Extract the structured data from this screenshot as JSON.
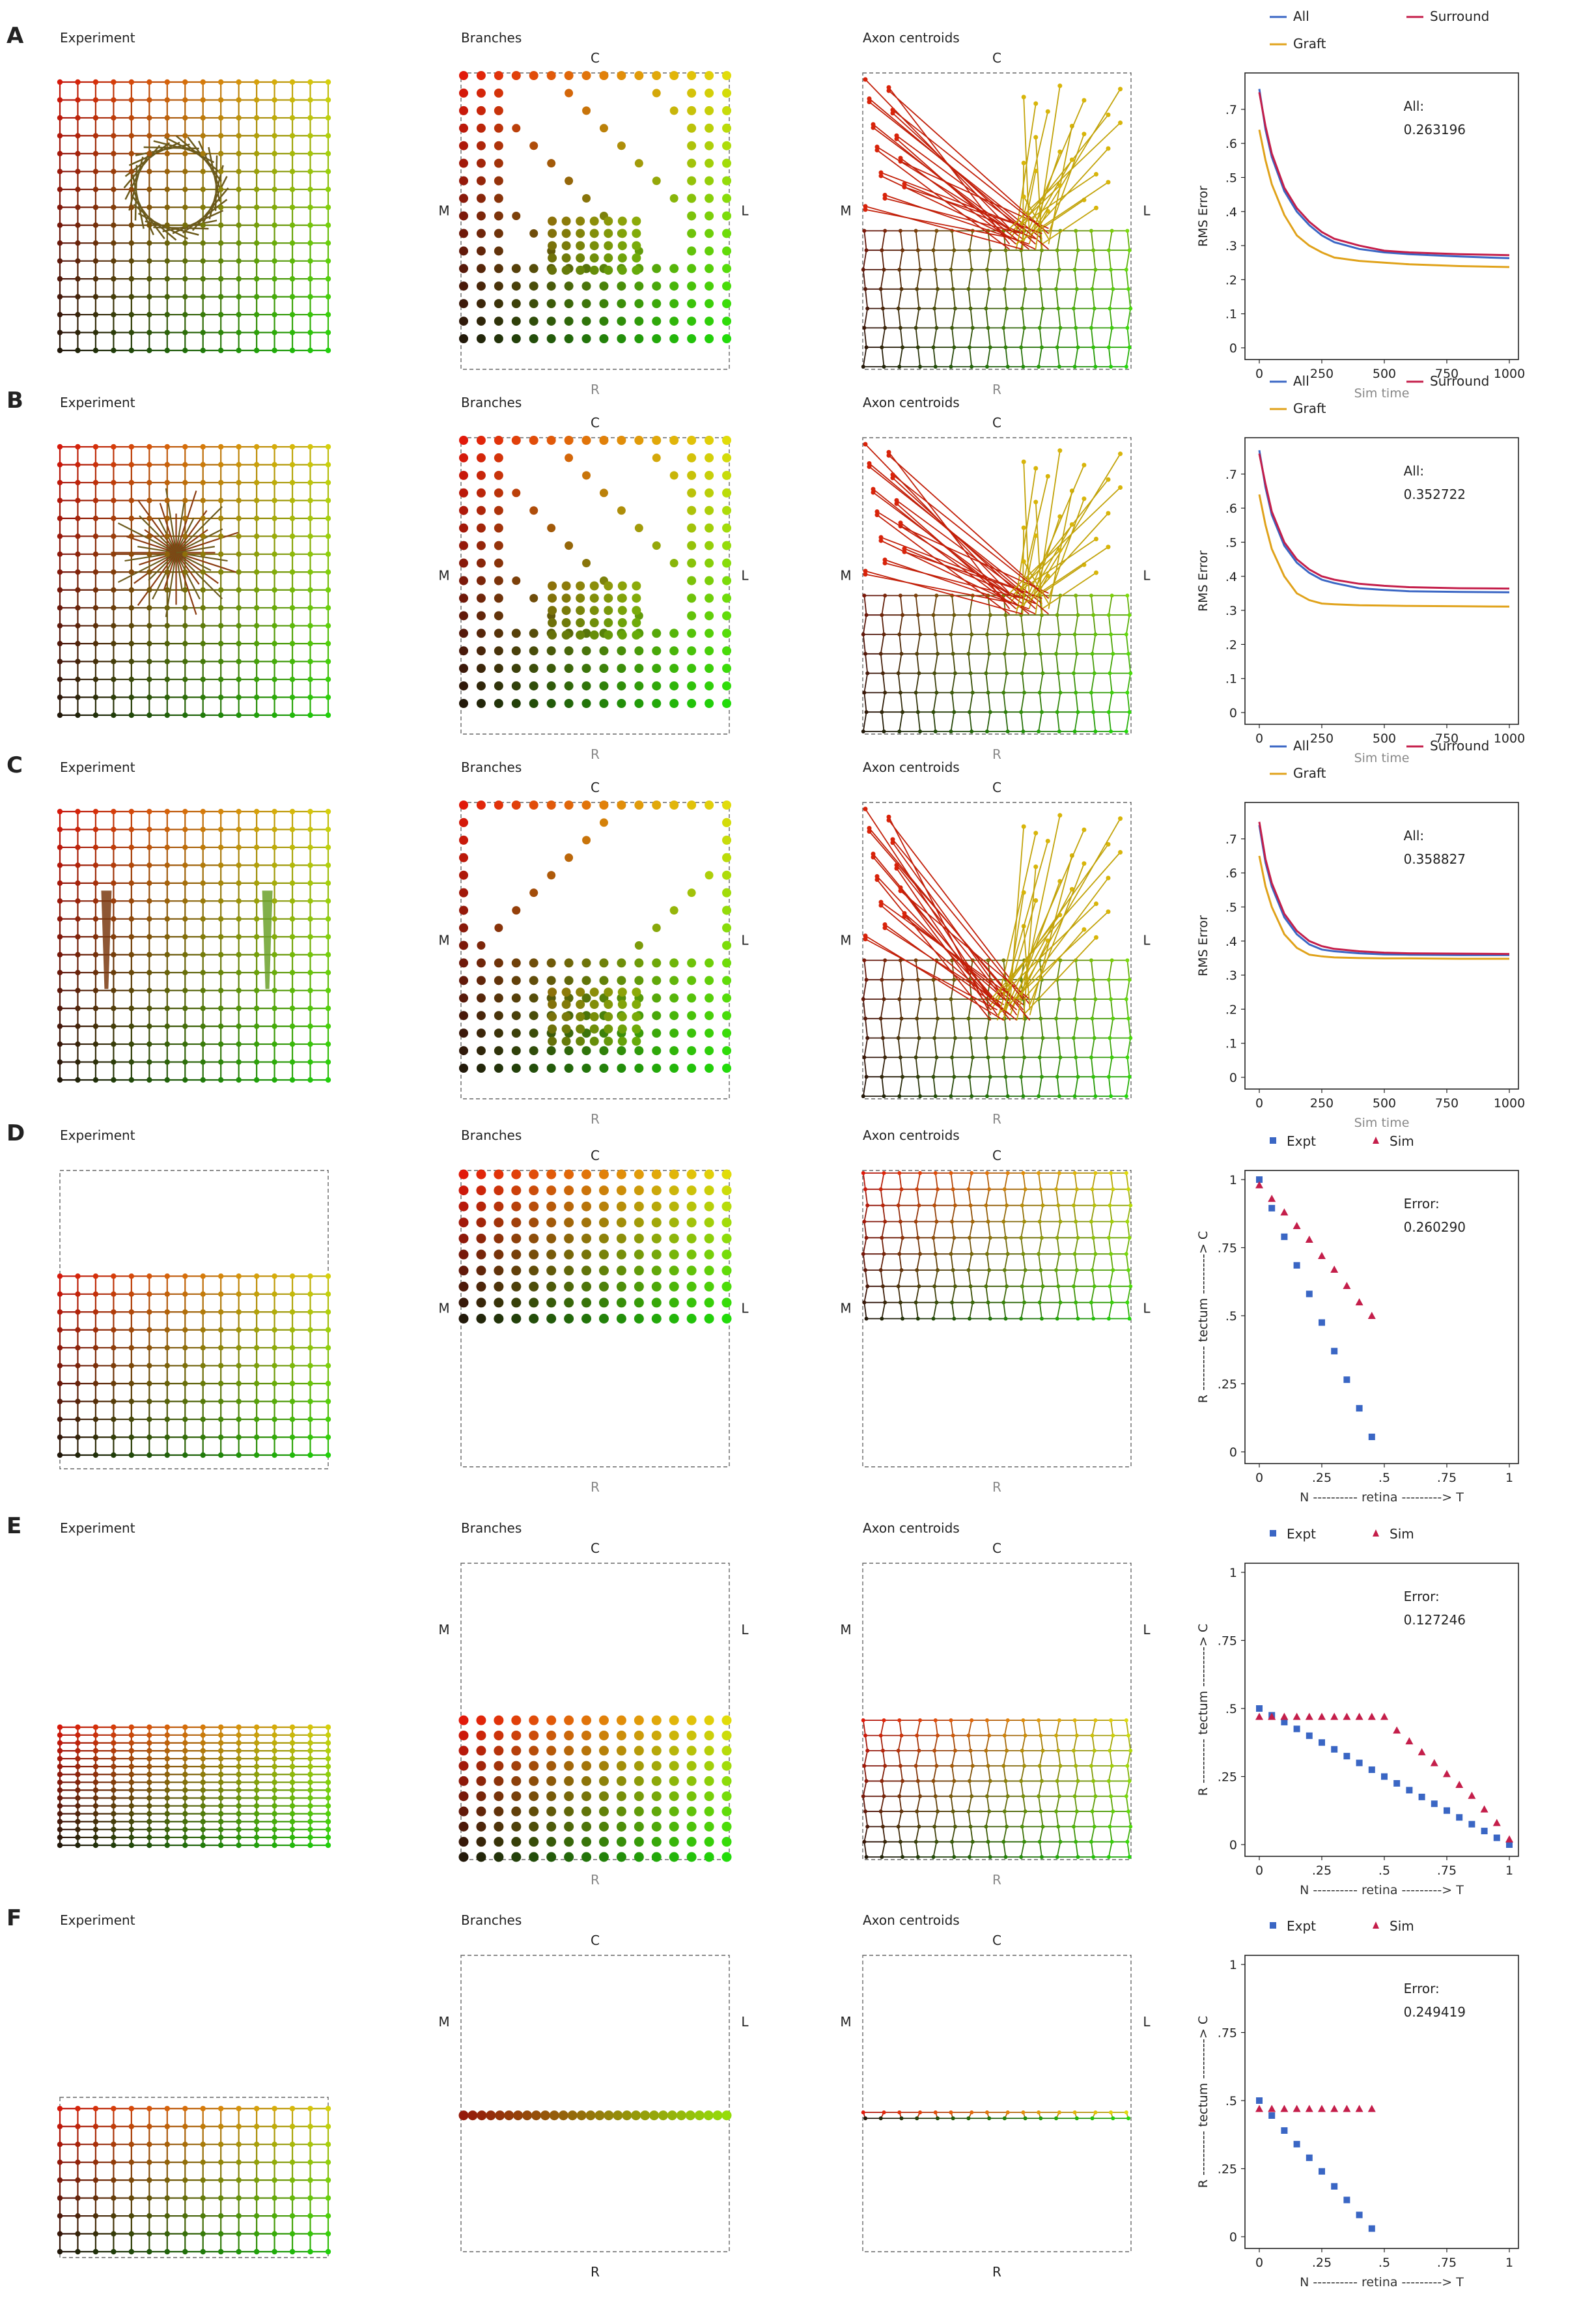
{
  "rows": [
    {
      "letter": "A",
      "titles": {
        "experiment": "Experiment",
        "branches": "Branches",
        "axons": "Axon centroids"
      },
      "axis_labels": {
        "c": "C",
        "m": "M",
        "l": "L",
        "r": "R"
      },
      "legend": [
        "All",
        "Surround",
        "Graft"
      ],
      "annotation": {
        "label": "All:",
        "value": "0.263196"
      },
      "chart_data": {
        "type": "line",
        "xlabel": "Sim time",
        "ylabel": "RMS Error",
        "xlim": [
          0,
          1000
        ],
        "ylim": [
          0,
          0.78
        ],
        "xticks": [
          "0",
          "250",
          "500",
          "750",
          "1000"
        ],
        "yticks": [
          "0",
          ".1",
          ".2",
          ".3",
          ".4",
          ".5",
          ".6",
          ".7"
        ],
        "series": [
          {
            "name": "All",
            "color": "#3a66c4",
            "points": [
              [
                0,
                0.76
              ],
              [
                25,
                0.64
              ],
              [
                50,
                0.56
              ],
              [
                100,
                0.46
              ],
              [
                150,
                0.4
              ],
              [
                200,
                0.36
              ],
              [
                250,
                0.33
              ],
              [
                300,
                0.31
              ],
              [
                400,
                0.29
              ],
              [
                500,
                0.28
              ],
              [
                600,
                0.275
              ],
              [
                800,
                0.268
              ],
              [
                1000,
                0.263
              ]
            ]
          },
          {
            "name": "Surround",
            "color": "#c41e4a",
            "points": [
              [
                0,
                0.75
              ],
              [
                25,
                0.65
              ],
              [
                50,
                0.57
              ],
              [
                100,
                0.47
              ],
              [
                150,
                0.41
              ],
              [
                200,
                0.37
              ],
              [
                250,
                0.34
              ],
              [
                300,
                0.32
              ],
              [
                400,
                0.3
              ],
              [
                500,
                0.285
              ],
              [
                600,
                0.28
              ],
              [
                800,
                0.275
              ],
              [
                1000,
                0.272
              ]
            ]
          },
          {
            "name": "Graft",
            "color": "#e0a21a",
            "points": [
              [
                0,
                0.64
              ],
              [
                25,
                0.55
              ],
              [
                50,
                0.48
              ],
              [
                100,
                0.39
              ],
              [
                150,
                0.33
              ],
              [
                200,
                0.3
              ],
              [
                250,
                0.28
              ],
              [
                300,
                0.265
              ],
              [
                400,
                0.255
              ],
              [
                500,
                0.25
              ],
              [
                600,
                0.245
              ],
              [
                800,
                0.24
              ],
              [
                1000,
                0.237
              ]
            ]
          }
        ]
      }
    },
    {
      "letter": "B",
      "titles": {
        "experiment": "Experiment",
        "branches": "Branches",
        "axons": "Axon centroids"
      },
      "axis_labels": {
        "c": "C",
        "m": "M",
        "l": "L",
        "r": "R"
      },
      "legend": [
        "All",
        "Surround",
        "Graft"
      ],
      "annotation": {
        "label": "All:",
        "value": "0.352722"
      },
      "chart_data": {
        "type": "line",
        "xlabel": "Sim time",
        "ylabel": "RMS Error",
        "xlim": [
          0,
          1000
        ],
        "ylim": [
          0,
          0.78
        ],
        "xticks": [
          "0",
          "250",
          "500",
          "750",
          "1000"
        ],
        "yticks": [
          "0",
          ".1",
          ".2",
          ".3",
          ".4",
          ".5",
          ".6",
          ".7"
        ],
        "series": [
          {
            "name": "All",
            "color": "#3a66c4",
            "points": [
              [
                0,
                0.77
              ],
              [
                25,
                0.66
              ],
              [
                50,
                0.58
              ],
              [
                100,
                0.49
              ],
              [
                150,
                0.44
              ],
              [
                200,
                0.41
              ],
              [
                250,
                0.39
              ],
              [
                300,
                0.38
              ],
              [
                400,
                0.365
              ],
              [
                500,
                0.36
              ],
              [
                600,
                0.356
              ],
              [
                800,
                0.354
              ],
              [
                1000,
                0.353
              ]
            ]
          },
          {
            "name": "Surround",
            "color": "#c41e4a",
            "points": [
              [
                0,
                0.76
              ],
              [
                25,
                0.67
              ],
              [
                50,
                0.59
              ],
              [
                100,
                0.5
              ],
              [
                150,
                0.45
              ],
              [
                200,
                0.42
              ],
              [
                250,
                0.4
              ],
              [
                300,
                0.39
              ],
              [
                400,
                0.378
              ],
              [
                500,
                0.372
              ],
              [
                600,
                0.368
              ],
              [
                800,
                0.365
              ],
              [
                1000,
                0.364
              ]
            ]
          },
          {
            "name": "Graft",
            "color": "#e0a21a",
            "points": [
              [
                0,
                0.64
              ],
              [
                25,
                0.55
              ],
              [
                50,
                0.48
              ],
              [
                100,
                0.4
              ],
              [
                150,
                0.35
              ],
              [
                200,
                0.33
              ],
              [
                250,
                0.32
              ],
              [
                300,
                0.318
              ],
              [
                400,
                0.315
              ],
              [
                500,
                0.314
              ],
              [
                600,
                0.313
              ],
              [
                800,
                0.312
              ],
              [
                1000,
                0.311
              ]
            ]
          }
        ]
      }
    },
    {
      "letter": "C",
      "titles": {
        "experiment": "Experiment",
        "branches": "Branches",
        "axons": "Axon centroids"
      },
      "axis_labels": {
        "c": "C",
        "m": "M",
        "l": "L",
        "r": "R"
      },
      "legend": [
        "All",
        "Surround",
        "Graft"
      ],
      "annotation": {
        "label": "All:",
        "value": "0.358827"
      },
      "chart_data": {
        "type": "line",
        "xlabel": "Sim time",
        "ylabel": "RMS Error",
        "xlim": [
          0,
          1000
        ],
        "ylim": [
          0,
          0.78
        ],
        "xticks": [
          "0",
          "250",
          "500",
          "750",
          "1000"
        ],
        "yticks": [
          "0",
          ".1",
          ".2",
          ".3",
          ".4",
          ".5",
          ".6",
          ".7"
        ],
        "series": [
          {
            "name": "All",
            "color": "#3a66c4",
            "points": [
              [
                0,
                0.74
              ],
              [
                25,
                0.63
              ],
              [
                50,
                0.56
              ],
              [
                100,
                0.47
              ],
              [
                150,
                0.42
              ],
              [
                200,
                0.39
              ],
              [
                250,
                0.375
              ],
              [
                300,
                0.37
              ],
              [
                400,
                0.364
              ],
              [
                500,
                0.361
              ],
              [
                600,
                0.36
              ],
              [
                800,
                0.359
              ],
              [
                1000,
                0.359
              ]
            ]
          },
          {
            "name": "Surround",
            "color": "#c41e4a",
            "points": [
              [
                0,
                0.75
              ],
              [
                25,
                0.64
              ],
              [
                50,
                0.57
              ],
              [
                100,
                0.48
              ],
              [
                150,
                0.43
              ],
              [
                200,
                0.4
              ],
              [
                250,
                0.385
              ],
              [
                300,
                0.377
              ],
              [
                400,
                0.37
              ],
              [
                500,
                0.366
              ],
              [
                600,
                0.364
              ],
              [
                800,
                0.363
              ],
              [
                1000,
                0.362
              ]
            ]
          },
          {
            "name": "Graft",
            "color": "#e0a21a",
            "points": [
              [
                0,
                0.65
              ],
              [
                25,
                0.56
              ],
              [
                50,
                0.5
              ],
              [
                100,
                0.42
              ],
              [
                150,
                0.38
              ],
              [
                200,
                0.36
              ],
              [
                250,
                0.355
              ],
              [
                300,
                0.352
              ],
              [
                400,
                0.35
              ],
              [
                500,
                0.349
              ],
              [
                600,
                0.349
              ],
              [
                800,
                0.348
              ],
              [
                1000,
                0.348
              ]
            ]
          }
        ]
      }
    },
    {
      "letter": "D",
      "titles": {
        "experiment": "Experiment",
        "branches": "Branches",
        "axons": "Axon centroids"
      },
      "axis_labels": {
        "c": "C",
        "m": "M",
        "l": "L",
        "r": "R"
      },
      "legend": [
        "Expt",
        "Sim"
      ],
      "annotation": {
        "label": "Error:",
        "value": "0.260290"
      },
      "chart_data": {
        "type": "scatter",
        "xlabel": "N ---------- retina ---------> T",
        "ylabel": "R ---------- tectum ---------> C",
        "xlim": [
          0,
          1
        ],
        "ylim": [
          0,
          1
        ],
        "xticks": [
          "0",
          ".25",
          ".5",
          ".75",
          "1"
        ],
        "yticks": [
          "0",
          ".25",
          ".5",
          ".75",
          "1"
        ],
        "series": [
          {
            "name": "Expt",
            "color": "#3a66c4",
            "marker": "square",
            "x": [
              0,
              0.05,
              0.1,
              0.15,
              0.2,
              0.25,
              0.3,
              0.35,
              0.4,
              0.45
            ],
            "y": [
              1.0,
              0.895,
              0.79,
              0.685,
              0.58,
              0.475,
              0.37,
              0.265,
              0.16,
              0.055
            ]
          },
          {
            "name": "Sim",
            "color": "#c41e4a",
            "marker": "triangle",
            "x": [
              0,
              0.05,
              0.1,
              0.15,
              0.2,
              0.25,
              0.3,
              0.35,
              0.4,
              0.45
            ],
            "y": [
              0.98,
              0.93,
              0.88,
              0.83,
              0.78,
              0.72,
              0.67,
              0.61,
              0.55,
              0.5
            ]
          }
        ]
      }
    },
    {
      "letter": "E",
      "titles": {
        "experiment": "Experiment",
        "branches": "Branches",
        "axons": "Axon centroids"
      },
      "axis_labels": {
        "c": "C",
        "m": "M",
        "l": "L",
        "r": "R"
      },
      "legend": [
        "Expt",
        "Sim"
      ],
      "annotation": {
        "label": "Error:",
        "value": "0.127246"
      },
      "chart_data": {
        "type": "scatter",
        "xlabel": "N ---------- retina ---------> T",
        "ylabel": "R ---------- tectum ---------> C",
        "xlim": [
          0,
          1
        ],
        "ylim": [
          0,
          1
        ],
        "xticks": [
          "0",
          ".25",
          ".5",
          ".75",
          "1"
        ],
        "yticks": [
          "0",
          ".25",
          ".5",
          ".75",
          "1"
        ],
        "series": [
          {
            "name": "Expt",
            "color": "#3a66c4",
            "marker": "square",
            "x": [
              0,
              0.05,
              0.1,
              0.15,
              0.2,
              0.25,
              0.3,
              0.35,
              0.4,
              0.45,
              0.5,
              0.55,
              0.6,
              0.65,
              0.7,
              0.75,
              0.8,
              0.85,
              0.9,
              0.95,
              1.0
            ],
            "y": [
              0.5,
              0.475,
              0.45,
              0.425,
              0.4,
              0.375,
              0.35,
              0.325,
              0.3,
              0.275,
              0.25,
              0.225,
              0.2,
              0.175,
              0.15,
              0.125,
              0.1,
              0.075,
              0.05,
              0.025,
              0.0
            ]
          },
          {
            "name": "Sim",
            "color": "#c41e4a",
            "marker": "triangle",
            "x": [
              0,
              0.05,
              0.1,
              0.15,
              0.2,
              0.25,
              0.3,
              0.35,
              0.4,
              0.45,
              0.5,
              0.55,
              0.6,
              0.65,
              0.7,
              0.75,
              0.8,
              0.85,
              0.9,
              0.95,
              1.0
            ],
            "y": [
              0.47,
              0.47,
              0.47,
              0.47,
              0.47,
              0.47,
              0.47,
              0.47,
              0.47,
              0.47,
              0.47,
              0.42,
              0.38,
              0.34,
              0.3,
              0.26,
              0.22,
              0.18,
              0.13,
              0.08,
              0.02
            ]
          }
        ]
      }
    },
    {
      "letter": "F",
      "titles": {
        "experiment": "Experiment",
        "branches": "Branches",
        "axons": "Axon centroids"
      },
      "axis_labels": {
        "c": "C",
        "m": "M",
        "l": "L",
        "r": "R"
      },
      "legend": [
        "Expt",
        "Sim"
      ],
      "annotation": {
        "label": "Error:",
        "value": "0.249419"
      },
      "chart_data": {
        "type": "scatter",
        "xlabel": "N ---------- retina ---------> T",
        "ylabel": "R ---------- tectum ---------> C",
        "xlim": [
          0,
          1
        ],
        "ylim": [
          0,
          1
        ],
        "xticks": [
          "0",
          ".25",
          ".5",
          ".75",
          "1"
        ],
        "yticks": [
          "0",
          ".25",
          ".5",
          ".75",
          "1"
        ],
        "series": [
          {
            "name": "Expt",
            "color": "#3a66c4",
            "marker": "square",
            "x": [
              0,
              0.05,
              0.1,
              0.15,
              0.2,
              0.25,
              0.3,
              0.35,
              0.4,
              0.45
            ],
            "y": [
              0.5,
              0.445,
              0.39,
              0.34,
              0.29,
              0.24,
              0.185,
              0.135,
              0.08,
              0.03
            ]
          },
          {
            "name": "Sim",
            "color": "#c41e4a",
            "marker": "triangle",
            "x": [
              0,
              0.05,
              0.1,
              0.15,
              0.2,
              0.25,
              0.3,
              0.35,
              0.4,
              0.45
            ],
            "y": [
              0.47,
              0.47,
              0.47,
              0.47,
              0.47,
              0.47,
              0.47,
              0.47,
              0.47,
              0.47
            ]
          }
        ]
      }
    }
  ]
}
